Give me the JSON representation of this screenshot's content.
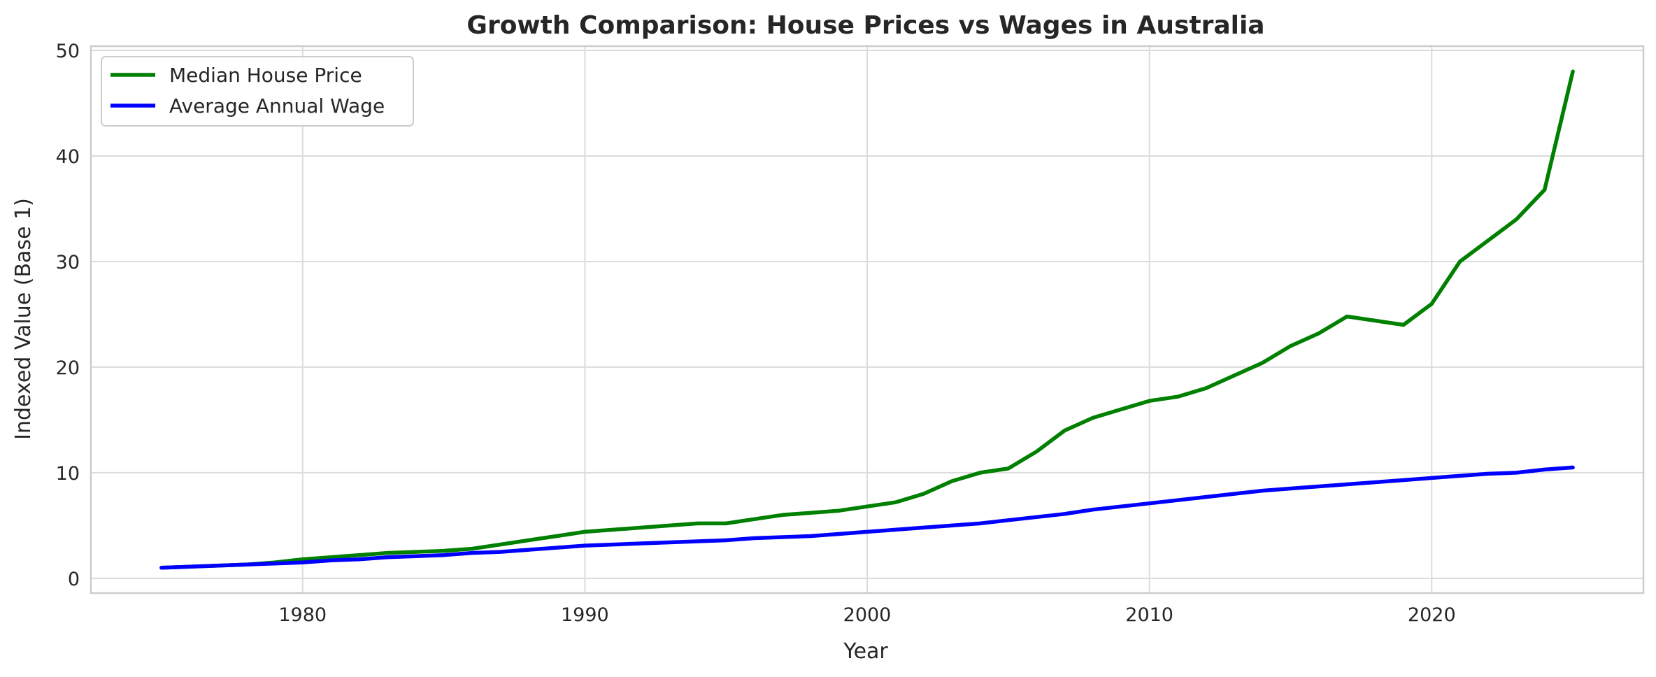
{
  "chart_data": {
    "type": "line",
    "title": "Growth Comparison: House Prices vs Wages in Australia",
    "xlabel": "Year",
    "ylabel": "Indexed Value (Base 1)",
    "xlim": [
      1972.25,
      1927.75
    ],
    "ylim": [
      -1.4,
      50.4
    ],
    "xticks": [
      1980,
      1990,
      2000,
      2010,
      2020
    ],
    "yticks": [
      0,
      10,
      20,
      30,
      40,
      50
    ],
    "grid": true,
    "legend_position": "upper-left",
    "x": [
      1975,
      1976,
      1977,
      1978,
      1979,
      1980,
      1981,
      1982,
      1983,
      1984,
      1985,
      1986,
      1987,
      1988,
      1989,
      1990,
      1991,
      1992,
      1993,
      1994,
      1995,
      1996,
      1997,
      1998,
      1999,
      2000,
      2001,
      2002,
      2003,
      2004,
      2005,
      2006,
      2007,
      2008,
      2009,
      2010,
      2011,
      2012,
      2013,
      2014,
      2015,
      2016,
      2017,
      2018,
      2019,
      2020,
      2021,
      2022,
      2023,
      2024,
      2025
    ],
    "series": [
      {
        "name": "Median House Price",
        "color": "#008000",
        "values": [
          1.0,
          1.1,
          1.2,
          1.3,
          1.5,
          1.8,
          2.0,
          2.2,
          2.4,
          2.5,
          2.6,
          2.8,
          3.2,
          3.6,
          4.0,
          4.4,
          4.6,
          4.8,
          5.0,
          5.2,
          5.2,
          5.6,
          6.0,
          6.2,
          6.4,
          6.8,
          7.2,
          8.0,
          9.2,
          10.0,
          10.4,
          12.0,
          14.0,
          15.2,
          16.0,
          16.8,
          17.2,
          18.0,
          19.2,
          20.4,
          22.0,
          23.2,
          24.8,
          24.4,
          24.0,
          26.0,
          30.0,
          32.0,
          34.0,
          36.8,
          48.0
        ]
      },
      {
        "name": "Average Annual Wage",
        "color": "#0000ff",
        "values": [
          1.0,
          1.1,
          1.2,
          1.3,
          1.4,
          1.5,
          1.7,
          1.8,
          2.0,
          2.1,
          2.2,
          2.4,
          2.5,
          2.7,
          2.9,
          3.1,
          3.2,
          3.3,
          3.4,
          3.5,
          3.6,
          3.8,
          3.9,
          4.0,
          4.2,
          4.4,
          4.6,
          4.8,
          5.0,
          5.2,
          5.5,
          5.8,
          6.1,
          6.5,
          6.8,
          7.1,
          7.4,
          7.7,
          8.0,
          8.3,
          8.5,
          8.7,
          8.9,
          9.1,
          9.3,
          9.5,
          9.7,
          9.9,
          10.0,
          10.3,
          10.5
        ]
      }
    ]
  }
}
